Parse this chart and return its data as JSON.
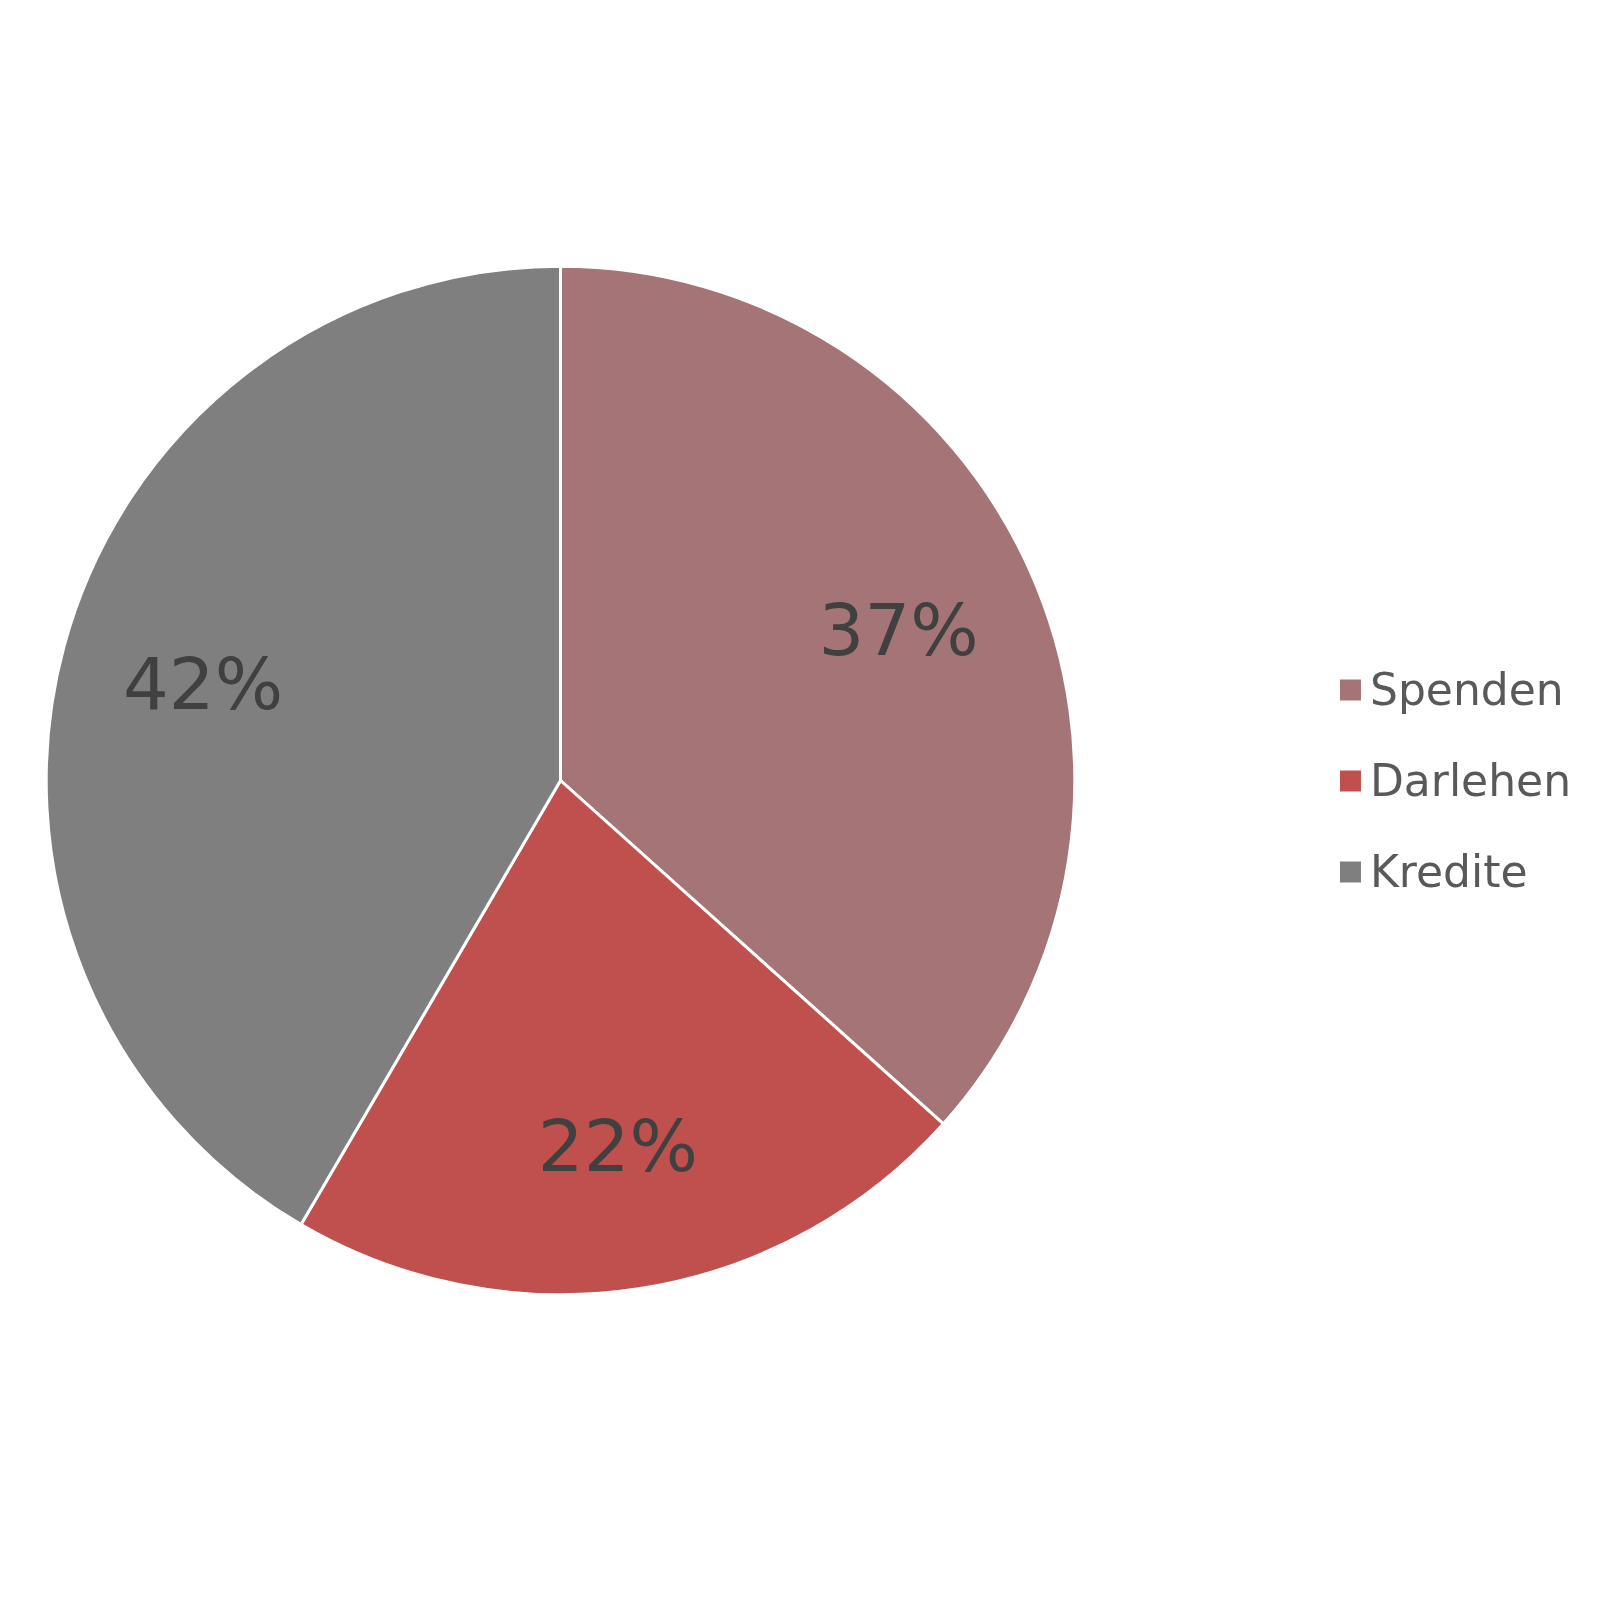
{
  "chart_data": {
    "type": "pie",
    "categories": [
      "Spenden",
      "Darlehen",
      "Kredite"
    ],
    "values": [
      37,
      22,
      42
    ],
    "colors": [
      "#a57477",
      "#c0504d",
      "#7f7f7f"
    ],
    "value_labels": [
      "37%",
      "22%",
      "42%"
    ],
    "legend": "right"
  }
}
